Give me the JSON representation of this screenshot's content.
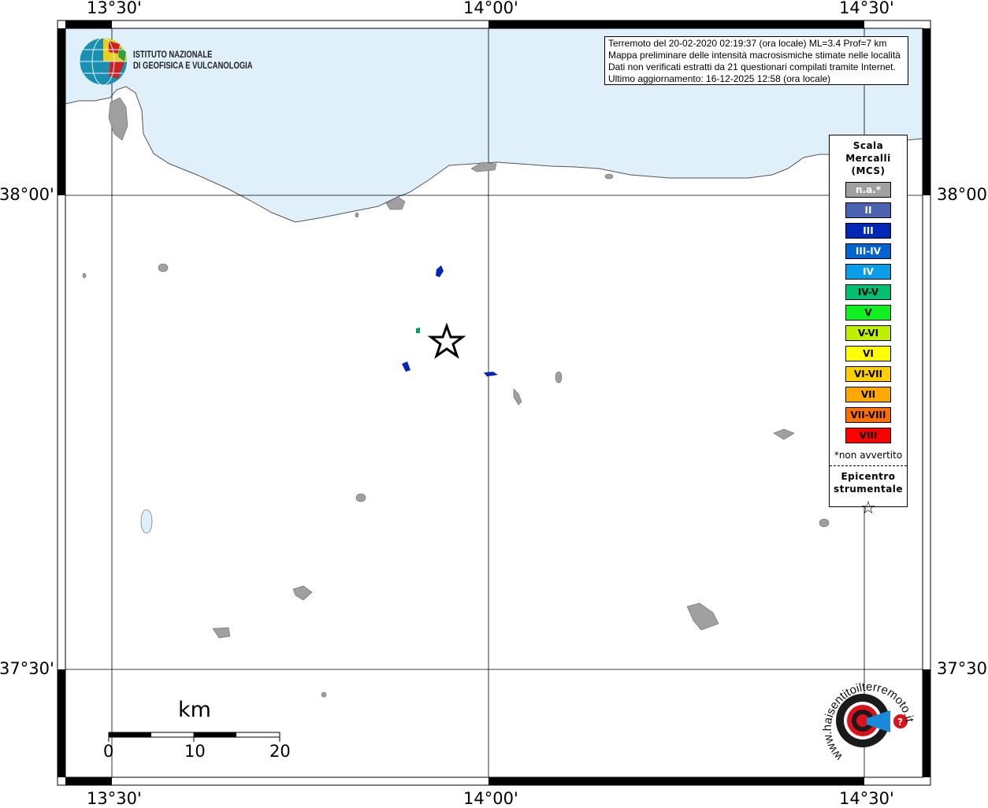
{
  "map": {
    "lon_labels": [
      "13°30'",
      "14°00'",
      "14°30'"
    ],
    "lat_labels": [
      "38°00'",
      "37°30'"
    ],
    "sea_color": "#dff0fb",
    "land_color": "#ffffff",
    "locality_color": "#a0a0a0"
  },
  "logo_ingv": {
    "line1": "ISTITUTO NAZIONALE",
    "line2": "DI GEOFISICA E VULCANOLOGIA"
  },
  "logo_hst": {
    "text": "www.haisentitoilterremoto.it"
  },
  "info": {
    "lines": [
      "Terremoto del 20-02-2020 02:19:37 (ora locale) ML=3.4 Prof=7 km",
      "Mappa preliminare delle intensità macrosismiche stimate nelle località",
      "Dati non verificati estratti da 21 questionari compilati tramite Internet.",
      "Ultimo aggiornamento: 16-12-2025 12:58 (ora locale)"
    ]
  },
  "legend": {
    "title": [
      "Scala",
      "Mercalli",
      "(MCS)"
    ],
    "items": [
      {
        "label": "n.a.*",
        "color": "#a0a0a0",
        "text_color": "#ffffff"
      },
      {
        "label": "II",
        "color": "#4a62b0",
        "text_color": "#ffffff"
      },
      {
        "label": "III",
        "color": "#0028b4",
        "text_color": "#ffffff"
      },
      {
        "label": "III-IV",
        "color": "#0063d0",
        "text_color": "#ffffff"
      },
      {
        "label": "IV",
        "color": "#0a9ee8",
        "text_color": "#ffffff"
      },
      {
        "label": "IV-V",
        "color": "#00c070",
        "text_color": "#000000"
      },
      {
        "label": "V",
        "color": "#10f020",
        "text_color": "#000000"
      },
      {
        "label": "V-VI",
        "color": "#c0f000",
        "text_color": "#000000"
      },
      {
        "label": "VI",
        "color": "#ffff00",
        "text_color": "#000000"
      },
      {
        "label": "VI-VII",
        "color": "#ffd000",
        "text_color": "#000000"
      },
      {
        "label": "VII",
        "color": "#ffa800",
        "text_color": "#000000"
      },
      {
        "label": "VII-VIII",
        "color": "#ff7000",
        "text_color": "#000000"
      },
      {
        "label": "VIII",
        "color": "#ff0000",
        "text_color": "#000000"
      }
    ],
    "note": "*non avvertito",
    "epicenter_label": [
      "Epicentro",
      "strumentale"
    ],
    "epicenter_symbol": "☆"
  },
  "scale_bar": {
    "unit": "km",
    "ticks": [
      "0",
      "10",
      "20"
    ]
  },
  "localities": [
    {
      "intensity": "III",
      "color": "#0028b4"
    },
    {
      "intensity": "IV-V",
      "color": "#00a060"
    },
    {
      "intensity": "III",
      "color": "#0028b4"
    },
    {
      "intensity": "III",
      "color": "#0028b4"
    }
  ]
}
